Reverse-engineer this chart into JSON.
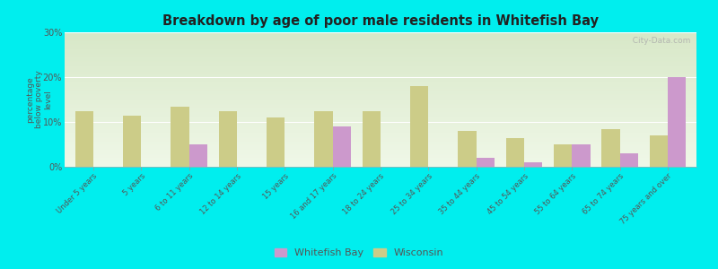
{
  "title": "Breakdown by age of poor male residents in Whitefish Bay",
  "categories": [
    "Under 5 years",
    "5 years",
    "6 to 11 years",
    "12 to 14 years",
    "15 years",
    "16 and 17 years",
    "18 to 24 years",
    "25 to 34 years",
    "35 to 44 years",
    "45 to 54 years",
    "55 to 64 years",
    "65 to 74 years",
    "75 years and over"
  ],
  "whitefish_bay": [
    0,
    0,
    5,
    0,
    0,
    9,
    0,
    0,
    2,
    1,
    5,
    3,
    20
  ],
  "wisconsin": [
    12.5,
    11.5,
    13.5,
    12.5,
    11,
    12.5,
    12.5,
    18,
    8,
    6.5,
    5,
    8.5,
    7
  ],
  "whitefish_color": "#cc99cc",
  "wisconsin_color": "#cccc88",
  "background_top": "#d8e8c8",
  "background_bottom": "#f0f8e8",
  "outer_bg": "#00eeee",
  "ylabel": "percentage\nbelow poverty\nlevel",
  "ylim": [
    0,
    30
  ],
  "yticks": [
    0,
    10,
    20,
    30
  ],
  "ytick_labels": [
    "0%",
    "10%",
    "20%",
    "30%"
  ],
  "legend_whitefish": "Whitefish Bay",
  "legend_wisconsin": "Wisconsin",
  "watermark": "  City-Data.com"
}
